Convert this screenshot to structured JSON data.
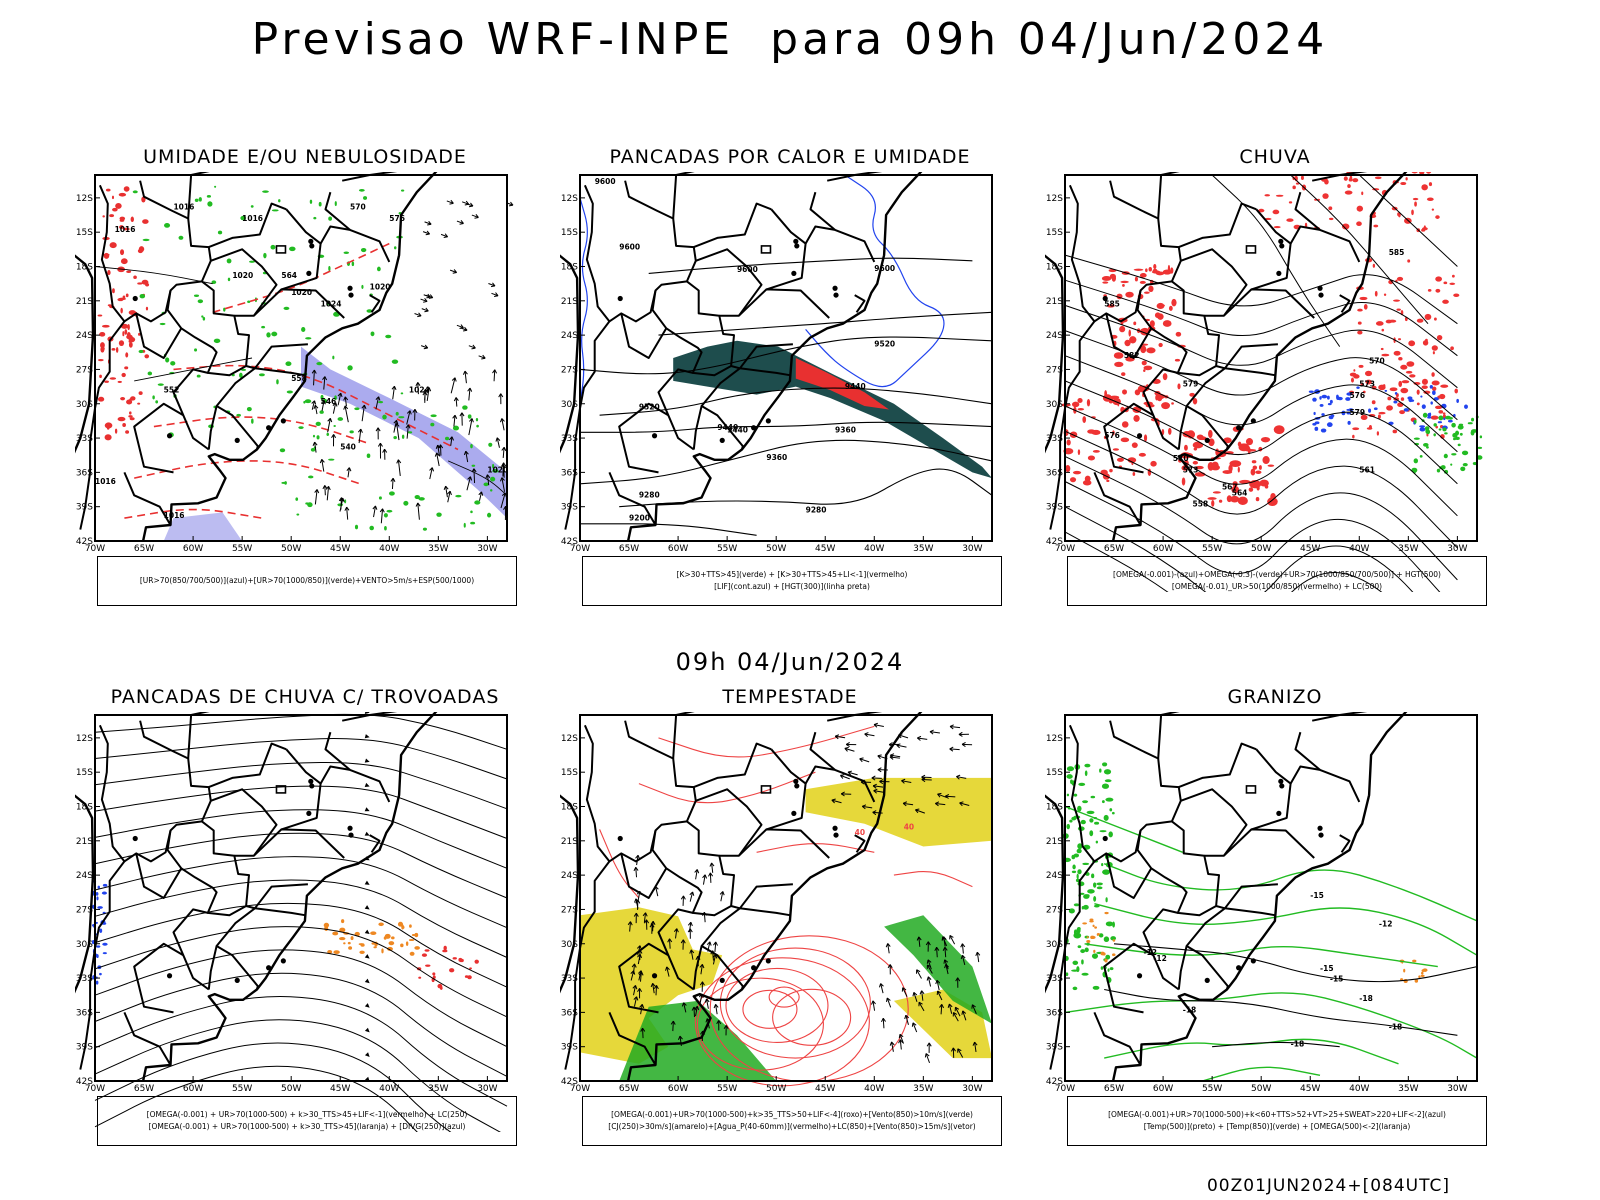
{
  "title": "Previsao WRF-INPE  para 09h 04/Jun/2024",
  "mid_title": "09h 04/Jun/2024",
  "footer": "00Z01JUN2024+[084UTC]",
  "axis": {
    "lat_ticks": [
      "12S",
      "15S",
      "18S",
      "21S",
      "24S",
      "27S",
      "30S",
      "33S",
      "36S",
      "39S",
      "42S"
    ],
    "lon_ticks": [
      "70W",
      "65W",
      "60W",
      "55W",
      "50W",
      "45W",
      "40W",
      "35W",
      "30W"
    ]
  },
  "panels": [
    {
      "id": "umidade",
      "title": "UMIDADE E/OU NEBULOSIDADE",
      "legend": [
        "[UR>70(850/700/500)](azul)+[UR>70(1000/850)](verde)+VENTO>5m/s+ESP(500/1000)"
      ],
      "contour_labels": [
        "1016",
        "1016",
        "1016",
        "1020",
        "1020",
        "1024",
        "1020",
        "570",
        "576",
        "564",
        "552",
        "546",
        "540",
        "558",
        "1024",
        "1020",
        "1016",
        "1016"
      ],
      "colors": {
        "blue_fill": "#8f8fe8",
        "green": "#22bb22",
        "red": "#e83030"
      }
    },
    {
      "id": "pancadas-calor",
      "title": "PANCADAS POR CALOR E UMIDADE",
      "legend": [
        "[K>30+TTS>45](verde) + [K>30+TTS>45+LI<-1](vermelho)",
        "[LIF](cont.azul) + [HGT(300)](linha preta)"
      ],
      "contour_labels": [
        "9600",
        "9600",
        "9600",
        "9600",
        "9520",
        "9520",
        "9440",
        "9440",
        "9360",
        "9360",
        "9280",
        "9280",
        "9200",
        "9440"
      ],
      "colors": {
        "dark_fill": "#1e4d4d",
        "red": "#e83030",
        "blue": "#2244ee"
      }
    },
    {
      "id": "chuva",
      "title": "CHUVA",
      "legend": [
        "[OMEGA(-0.001)-(azul)+OMEGA(-0.3)-(verde)+UR>70(1000/850/700/500)] + HGT(500)",
        "[OMEGA(-0.01)_UR>50(1000/850)(vermelho) + LC(500)"
      ],
      "contour_labels": [
        "585",
        "585",
        "582",
        "579",
        "576",
        "573",
        "570",
        "567",
        "564",
        "561",
        "558",
        "570",
        "573",
        "576",
        "579"
      ],
      "colors": {
        "red": "#ee3333",
        "blue": "#2244ee",
        "green": "#22bb22"
      }
    },
    {
      "id": "trovoadas",
      "title": "PANCADAS DE CHUVA C/ TROVOADAS",
      "legend": [
        "[OMEGA(-0.001) + UR>70(1000-500) + k>30_TTS>45+LIF<-1](vermelho) + LC(250)",
        "[OMEGA(-0.001) + UR>70(1000-500) + k>30_TTS>45](laranja) + [DIVG(250)](azul)"
      ],
      "contour_labels": [],
      "colors": {
        "orange": "#ee8822",
        "blue": "#2244ee",
        "red": "#e83030"
      }
    },
    {
      "id": "tempestade",
      "title": "TEMPESTADE",
      "legend": [
        "[OMEGA(-0.001)+UR>70(1000-500)+k>35_TTS>50+LIF<-4](roxo)+[Vento(850)>10m/s](verde)",
        "[CJ(250)>30m/s](amarelo)+[Agua_P(40-60mm)](vermelho)+LC(850)+[Vento(850)>15m/s](vetor)"
      ],
      "contour_labels": [
        "40",
        "40"
      ],
      "colors": {
        "yellow": "#e6d83a",
        "green": "#22aa22",
        "red": "#ee4444"
      }
    },
    {
      "id": "granizo",
      "title": "GRANIZO",
      "legend": [
        "[OMEGA(-0.001)+UR>70(1000-500)+k<60+TTS>52+VT>25+SWEAT>220+LIF<-2](azul)",
        "[Temp(500)](preto) + [Temp(850)](verde) + [OMEGA(500)<-2](laranja)"
      ],
      "contour_labels": [
        "-12",
        "-12",
        "-15",
        "-15",
        "-15",
        "-18",
        "-18",
        "-18",
        "-18",
        "-12"
      ],
      "colors": {
        "green": "#22bb22",
        "orange": "#ee8822"
      }
    }
  ]
}
